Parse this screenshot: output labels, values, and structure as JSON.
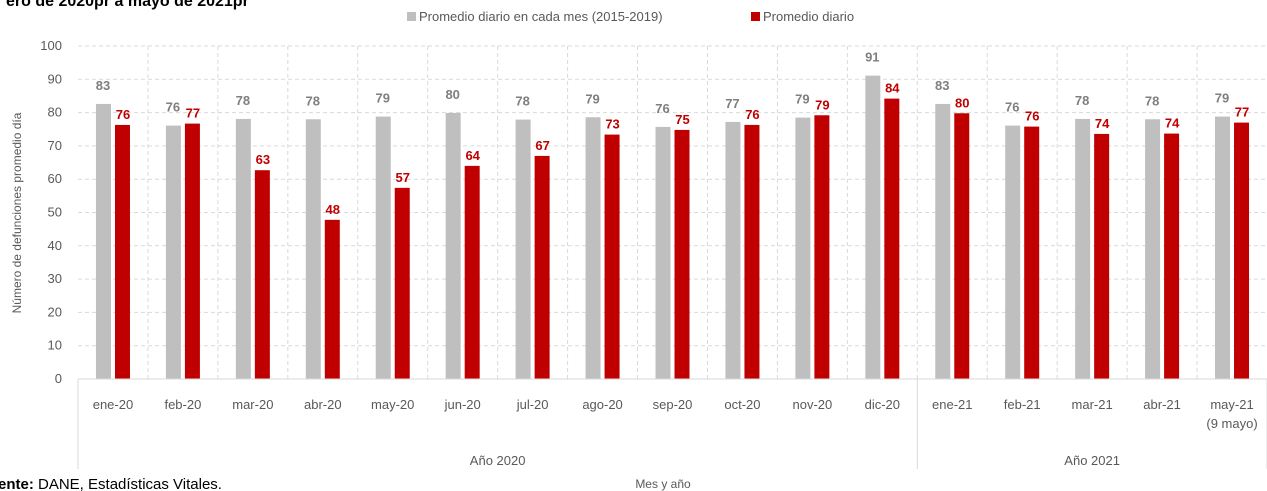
{
  "chart_data": {
    "type": "bar",
    "title": "ero de 2020pr a mayo de 2021pr",
    "xlabel": "Mes y año",
    "ylabel": "Número de defunciones promedio día",
    "ylim": [
      0,
      100
    ],
    "yticks": [
      0,
      10,
      20,
      30,
      40,
      50,
      60,
      70,
      80,
      90,
      100
    ],
    "grid": true,
    "legend_position": "top",
    "categories": [
      "ene-20",
      "feb-20",
      "mar-20",
      "abr-20",
      "may-20",
      "jun-20",
      "jul-20",
      "ago-20",
      "sep-20",
      "oct-20",
      "nov-20",
      "dic-20",
      "ene-21",
      "feb-21",
      "mar-21",
      "abr-21",
      "may-21"
    ],
    "category_notes": {
      "16": "(9 mayo)"
    },
    "groups": [
      {
        "label": "Año 2020",
        "start": 0,
        "end": 11
      },
      {
        "label": "Año 2021",
        "start": 12,
        "end": 16
      }
    ],
    "series": [
      {
        "name": "Promedio diario en cada mes (2015-2019)",
        "color": "#bfbfbf",
        "label_color": "#7f7f7f",
        "values": [
          82.6,
          76.1,
          78.1,
          78.0,
          78.8,
          79.9,
          77.9,
          78.6,
          75.7,
          77.2,
          78.5,
          91.1,
          82.6,
          76.1,
          78.1,
          78.0,
          78.8
        ],
        "labels": [
          "83",
          "76",
          "78",
          "78",
          "79",
          "80",
          "78",
          "79",
          "76",
          "77",
          "79",
          "91",
          "83",
          "76",
          "78",
          "78",
          "79"
        ]
      },
      {
        "name": "Promedio diario",
        "color": "#c00000",
        "label_color": "#c00000",
        "values": [
          76.3,
          76.7,
          62.7,
          47.8,
          57.4,
          64.0,
          67.0,
          73.4,
          74.8,
          76.3,
          79.2,
          84.2,
          79.8,
          75.8,
          73.6,
          73.7,
          77.0
        ],
        "labels": [
          "76",
          "77",
          "63",
          "48",
          "57",
          "64",
          "67",
          "73",
          "75",
          "76",
          "79",
          "84",
          "80",
          "76",
          "74",
          "74",
          "77"
        ]
      }
    ]
  },
  "source": {
    "prefix": "ente:",
    "text": " DANE, Estadísticas Vitales."
  }
}
